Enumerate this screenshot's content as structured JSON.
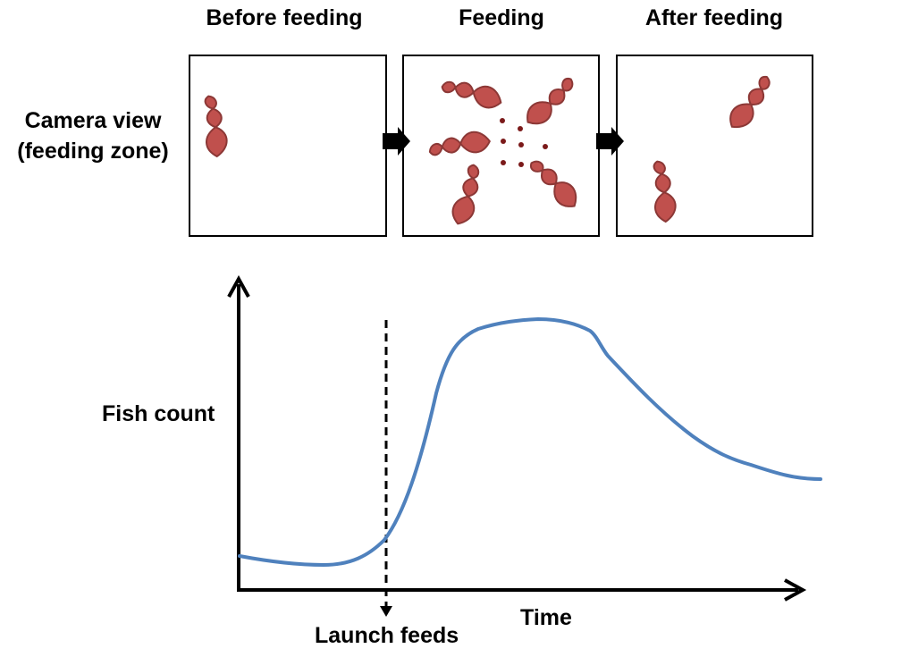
{
  "panels": [
    {
      "title": "Before feeding"
    },
    {
      "title": "Feeding"
    },
    {
      "title": "After feeding"
    }
  ],
  "row_label": {
    "line1": "Camera view",
    "line2": "(feeding zone)"
  },
  "axes": {
    "y_label": "Fish count",
    "x_label": "Time"
  },
  "marker": {
    "label": "Launch feeds"
  },
  "colors": {
    "fish_fill": "#c0504d",
    "fish_stroke": "#8c3836",
    "feed_pellet": "#7b1a1a",
    "curve": "#4f81bd",
    "frame": "#000000"
  }
}
